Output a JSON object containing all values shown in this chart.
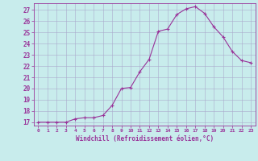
{
  "x": [
    0,
    1,
    2,
    3,
    4,
    5,
    6,
    7,
    8,
    9,
    10,
    11,
    12,
    13,
    14,
    15,
    16,
    17,
    18,
    19,
    20,
    21,
    22,
    23
  ],
  "y": [
    17.0,
    17.0,
    17.0,
    17.0,
    17.3,
    17.4,
    17.4,
    17.6,
    18.5,
    20.0,
    20.1,
    21.5,
    22.6,
    25.1,
    25.3,
    26.6,
    27.1,
    27.3,
    26.7,
    25.5,
    24.6,
    23.3,
    22.5,
    22.3
  ],
  "line_color": "#993399",
  "marker": "+",
  "marker_size": 3,
  "bg_color": "#c8ecec",
  "grid_color": "#aaaacc",
  "xlabel": "Windchill (Refroidissement éolien,°C)",
  "ylabel_ticks": [
    17,
    18,
    19,
    20,
    21,
    22,
    23,
    24,
    25,
    26,
    27
  ],
  "xlim": [
    -0.5,
    23.5
  ],
  "ylim": [
    16.7,
    27.6
  ],
  "tick_color": "#993399",
  "label_color": "#993399",
  "spine_color": "#993399"
}
